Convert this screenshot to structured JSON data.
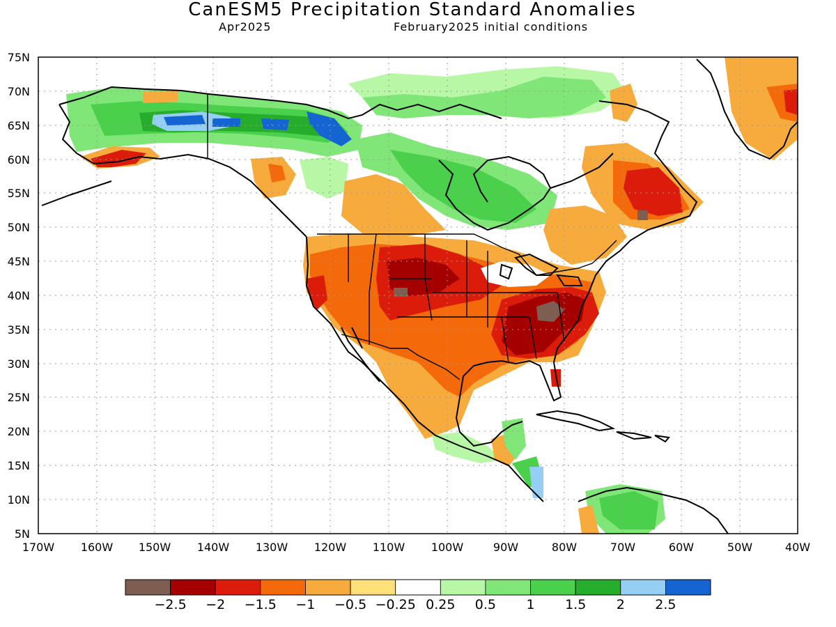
{
  "title": "CanESM5 Precipitation Standard Anomalies",
  "valid_month": "Apr2025",
  "initial_conditions": "February2025 initial conditions",
  "map": {
    "lon_labels": [
      "170W",
      "160W",
      "150W",
      "140W",
      "130W",
      "120W",
      "110W",
      "100W",
      "90W",
      "80W",
      "70W",
      "60W",
      "50W",
      "40W"
    ],
    "lat_labels": [
      "75N",
      "70N",
      "65N",
      "60N",
      "55N",
      "50N",
      "45N",
      "40N",
      "35N",
      "30N",
      "25N",
      "20N",
      "15N",
      "10N",
      "5N"
    ],
    "lon_range": [
      -170,
      -40
    ],
    "lat_range": [
      5,
      75
    ],
    "grid": "dotted"
  },
  "colorbar": {
    "colors": [
      "#7f5e52",
      "#a50000",
      "#dc1c0a",
      "#f46a0a",
      "#f7ab3c",
      "#fee07a",
      "#ffffff",
      "#b7f7a6",
      "#7fe677",
      "#4bd04c",
      "#26ad2c",
      "#96cff5",
      "#1464d2"
    ],
    "tick_labels": [
      "−2.5",
      "−2",
      "−1.5",
      "−1",
      "−0.5",
      "−0.25",
      "0.25",
      "0.5",
      "1",
      "1.5",
      "2",
      "2.5"
    ]
  }
}
